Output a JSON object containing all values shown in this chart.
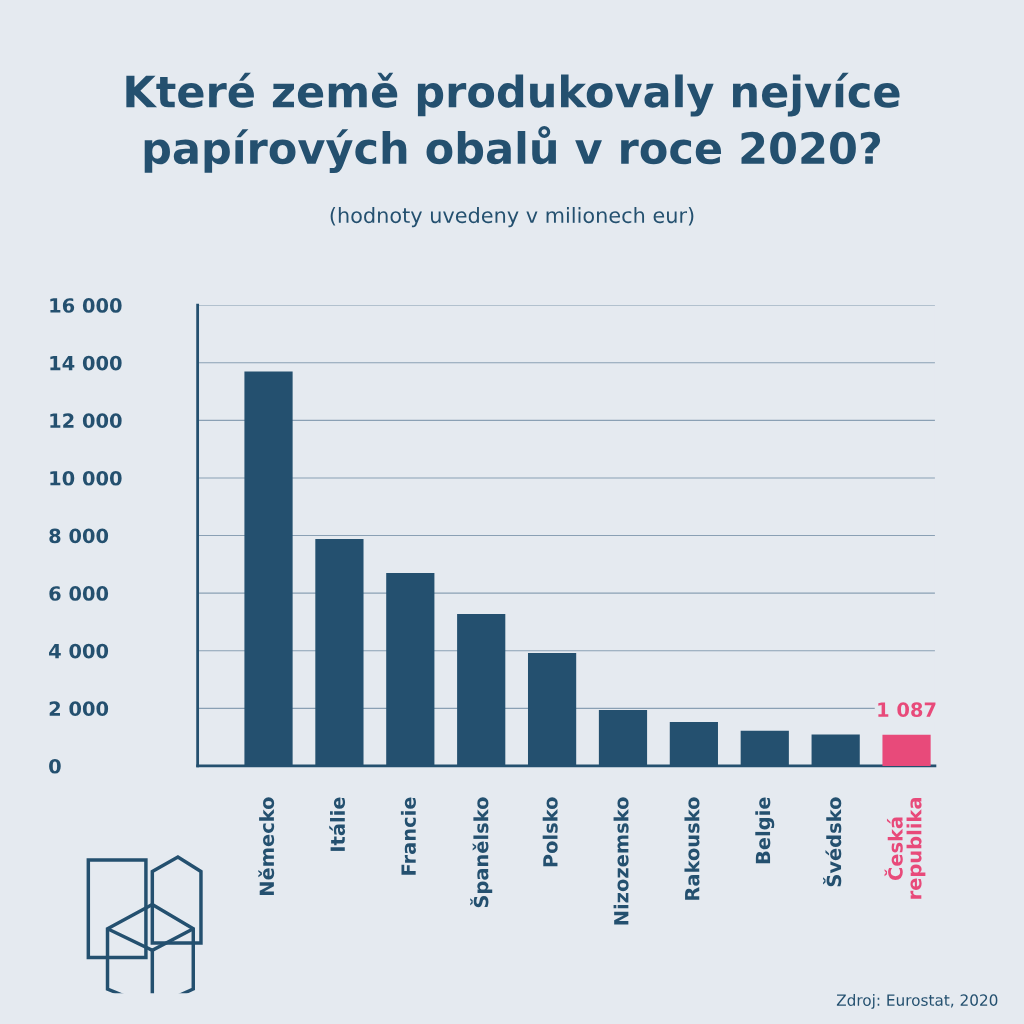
{
  "chart_data": {
    "type": "bar",
    "title": "Které země produkovaly nejvíce\npapírových obalů v roce 2020?",
    "subtitle": "(hodnoty uvedeny v milionech eur)",
    "categories": [
      "Německo",
      "Itálie",
      "Francie",
      "Španělsko",
      "Polsko",
      "Nizozemsko",
      "Rakousko",
      "Belgie",
      "Švédsko",
      "Česká\nrepublika"
    ],
    "values": [
      13700,
      7880,
      6700,
      5280,
      3920,
      1940,
      1530,
      1220,
      1090,
      1087
    ],
    "colors": [
      "#24506f",
      "#24506f",
      "#24506f",
      "#24506f",
      "#24506f",
      "#24506f",
      "#24506f",
      "#24506f",
      "#24506f",
      "#e84a7a"
    ],
    "value_labels": [
      null,
      null,
      null,
      null,
      null,
      null,
      null,
      null,
      null,
      "1 087"
    ],
    "ylim": [
      0,
      16000
    ],
    "yticks": [
      {
        "value": 0,
        "label": "0"
      },
      {
        "value": 2000,
        "label": "2 000"
      },
      {
        "value": 4000,
        "label": "4 000"
      },
      {
        "value": 6000,
        "label": "6 000"
      },
      {
        "value": 8000,
        "label": "8 000"
      },
      {
        "value": 10000,
        "label": "10 000"
      },
      {
        "value": 12000,
        "label": "12 000"
      },
      {
        "value": 14000,
        "label": "14 000"
      },
      {
        "value": 16000,
        "label": "16 000"
      }
    ],
    "grid": "y",
    "legend": false,
    "annotations": [
      "Zdroj: Eurostat, 2020"
    ]
  }
}
